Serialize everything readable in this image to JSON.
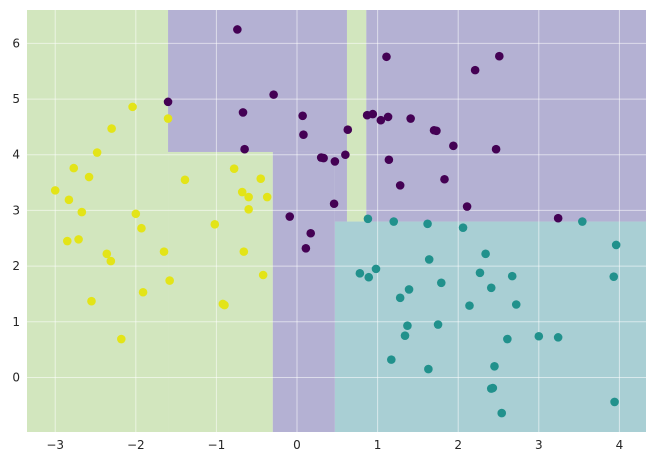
{
  "chart_data": {
    "type": "scatter",
    "title": "",
    "xlabel": "",
    "ylabel": "",
    "xlim": [
      -3.35,
      4.33
    ],
    "ylim": [
      -0.98,
      6.6
    ],
    "grid": true,
    "legend": "none",
    "x_ticks": [
      -3,
      -2,
      -1,
      0,
      1,
      2,
      3,
      4
    ],
    "y_ticks": [
      0,
      1,
      2,
      3,
      4,
      5,
      6
    ],
    "x_tick_labels": [
      "−3",
      "−2",
      "−1",
      "0",
      "1",
      "2",
      "3",
      "4"
    ],
    "y_tick_labels": [
      "0",
      "1",
      "2",
      "3",
      "4",
      "5",
      "6"
    ],
    "colors": {
      "class0": "#440154",
      "class1": "#21918c",
      "class2": "#e3e418",
      "region0": "#b4b1d3",
      "region1": "#a9cfd4",
      "region2": "#d2e6be",
      "plot_background": "#eaeaf2",
      "grid": "#ffffff"
    },
    "regions": [
      {
        "class": 2,
        "x": [
          -3.35,
          -1.6
        ],
        "y": [
          -0.98,
          6.6
        ]
      },
      {
        "class": 2,
        "x": [
          -1.6,
          -0.3
        ],
        "y": [
          -0.98,
          4.05
        ]
      },
      {
        "class": 0,
        "x": [
          -1.6,
          0.62
        ],
        "y": [
          4.05,
          6.6
        ]
      },
      {
        "class": 0,
        "x": [
          -0.3,
          0.47
        ],
        "y": [
          -0.98,
          4.05
        ]
      },
      {
        "class": 0,
        "x": [
          0.47,
          0.62
        ],
        "y": [
          2.8,
          4.05
        ]
      },
      {
        "class": 2,
        "x": [
          0.62,
          0.86
        ],
        "y": [
          2.8,
          6.6
        ]
      },
      {
        "class": 0,
        "x": [
          0.86,
          4.33
        ],
        "y": [
          2.8,
          6.6
        ]
      },
      {
        "class": 1,
        "x": [
          0.47,
          4.33
        ],
        "y": [
          -0.98,
          2.8
        ]
      }
    ],
    "series": [
      {
        "class": 0,
        "x": [
          -0.74,
          -0.29,
          -1.6,
          -0.67,
          -0.65,
          0.07,
          0.08,
          0.3,
          0.33,
          0.47,
          0.63,
          0.6,
          0.87,
          0.94,
          1.04,
          1.11,
          1.13,
          1.14,
          1.41,
          1.7,
          1.73,
          1.83,
          1.94,
          2.11,
          2.21,
          2.47,
          2.51,
          1.28,
          0.46,
          0.11,
          3.24,
          -0.09,
          0.17
        ],
        "y": [
          6.25,
          5.08,
          4.95,
          4.76,
          4.1,
          4.7,
          4.36,
          3.95,
          3.94,
          3.88,
          4.45,
          4.0,
          4.71,
          4.73,
          4.62,
          5.76,
          4.68,
          3.91,
          4.65,
          4.44,
          4.43,
          3.56,
          4.16,
          3.07,
          5.52,
          4.1,
          5.77,
          3.45,
          3.12,
          2.32,
          2.86,
          2.89,
          2.59
        ]
      },
      {
        "class": 1,
        "x": [
          0.88,
          1.2,
          1.62,
          2.06,
          2.34,
          0.78,
          0.98,
          0.89,
          1.39,
          1.64,
          1.79,
          1.28,
          1.37,
          1.34,
          1.17,
          1.63,
          1.75,
          2.14,
          2.27,
          2.41,
          2.67,
          2.72,
          2.61,
          2.45,
          2.43,
          2.41,
          2.54,
          3.0,
          3.24,
          3.54,
          3.93,
          3.96,
          3.94
        ],
        "y": [
          2.85,
          2.8,
          2.76,
          2.69,
          2.22,
          1.87,
          1.95,
          1.8,
          1.58,
          2.12,
          1.7,
          1.43,
          0.93,
          0.75,
          0.32,
          0.15,
          0.95,
          1.29,
          1.88,
          1.61,
          1.82,
          1.31,
          0.69,
          0.2,
          -0.19,
          -0.2,
          -0.64,
          0.74,
          0.72,
          2.8,
          1.81,
          2.38,
          -0.44
        ]
      },
      {
        "class": 2,
        "x": [
          -2.04,
          -1.6,
          -2.3,
          -2.48,
          -3.0,
          -2.77,
          -2.58,
          -2.83,
          -2.67,
          -2.85,
          -2.71,
          -2.36,
          -2.31,
          -2.55,
          -2.18,
          -2.0,
          -1.93,
          -1.91,
          -1.65,
          -1.58,
          -1.39,
          -0.78,
          -0.66,
          -0.6,
          -0.45,
          -0.37,
          -0.6,
          -0.68,
          -1.02,
          -0.92,
          -0.9,
          -0.42
        ],
        "y": [
          4.86,
          4.65,
          4.47,
          4.04,
          3.36,
          3.76,
          3.6,
          3.19,
          2.97,
          2.45,
          2.48,
          2.22,
          2.09,
          1.37,
          0.69,
          2.94,
          2.68,
          1.53,
          2.26,
          1.74,
          3.55,
          3.75,
          2.26,
          3.02,
          3.57,
          3.24,
          3.24,
          3.33,
          2.75,
          1.32,
          1.3,
          1.84
        ]
      }
    ]
  }
}
